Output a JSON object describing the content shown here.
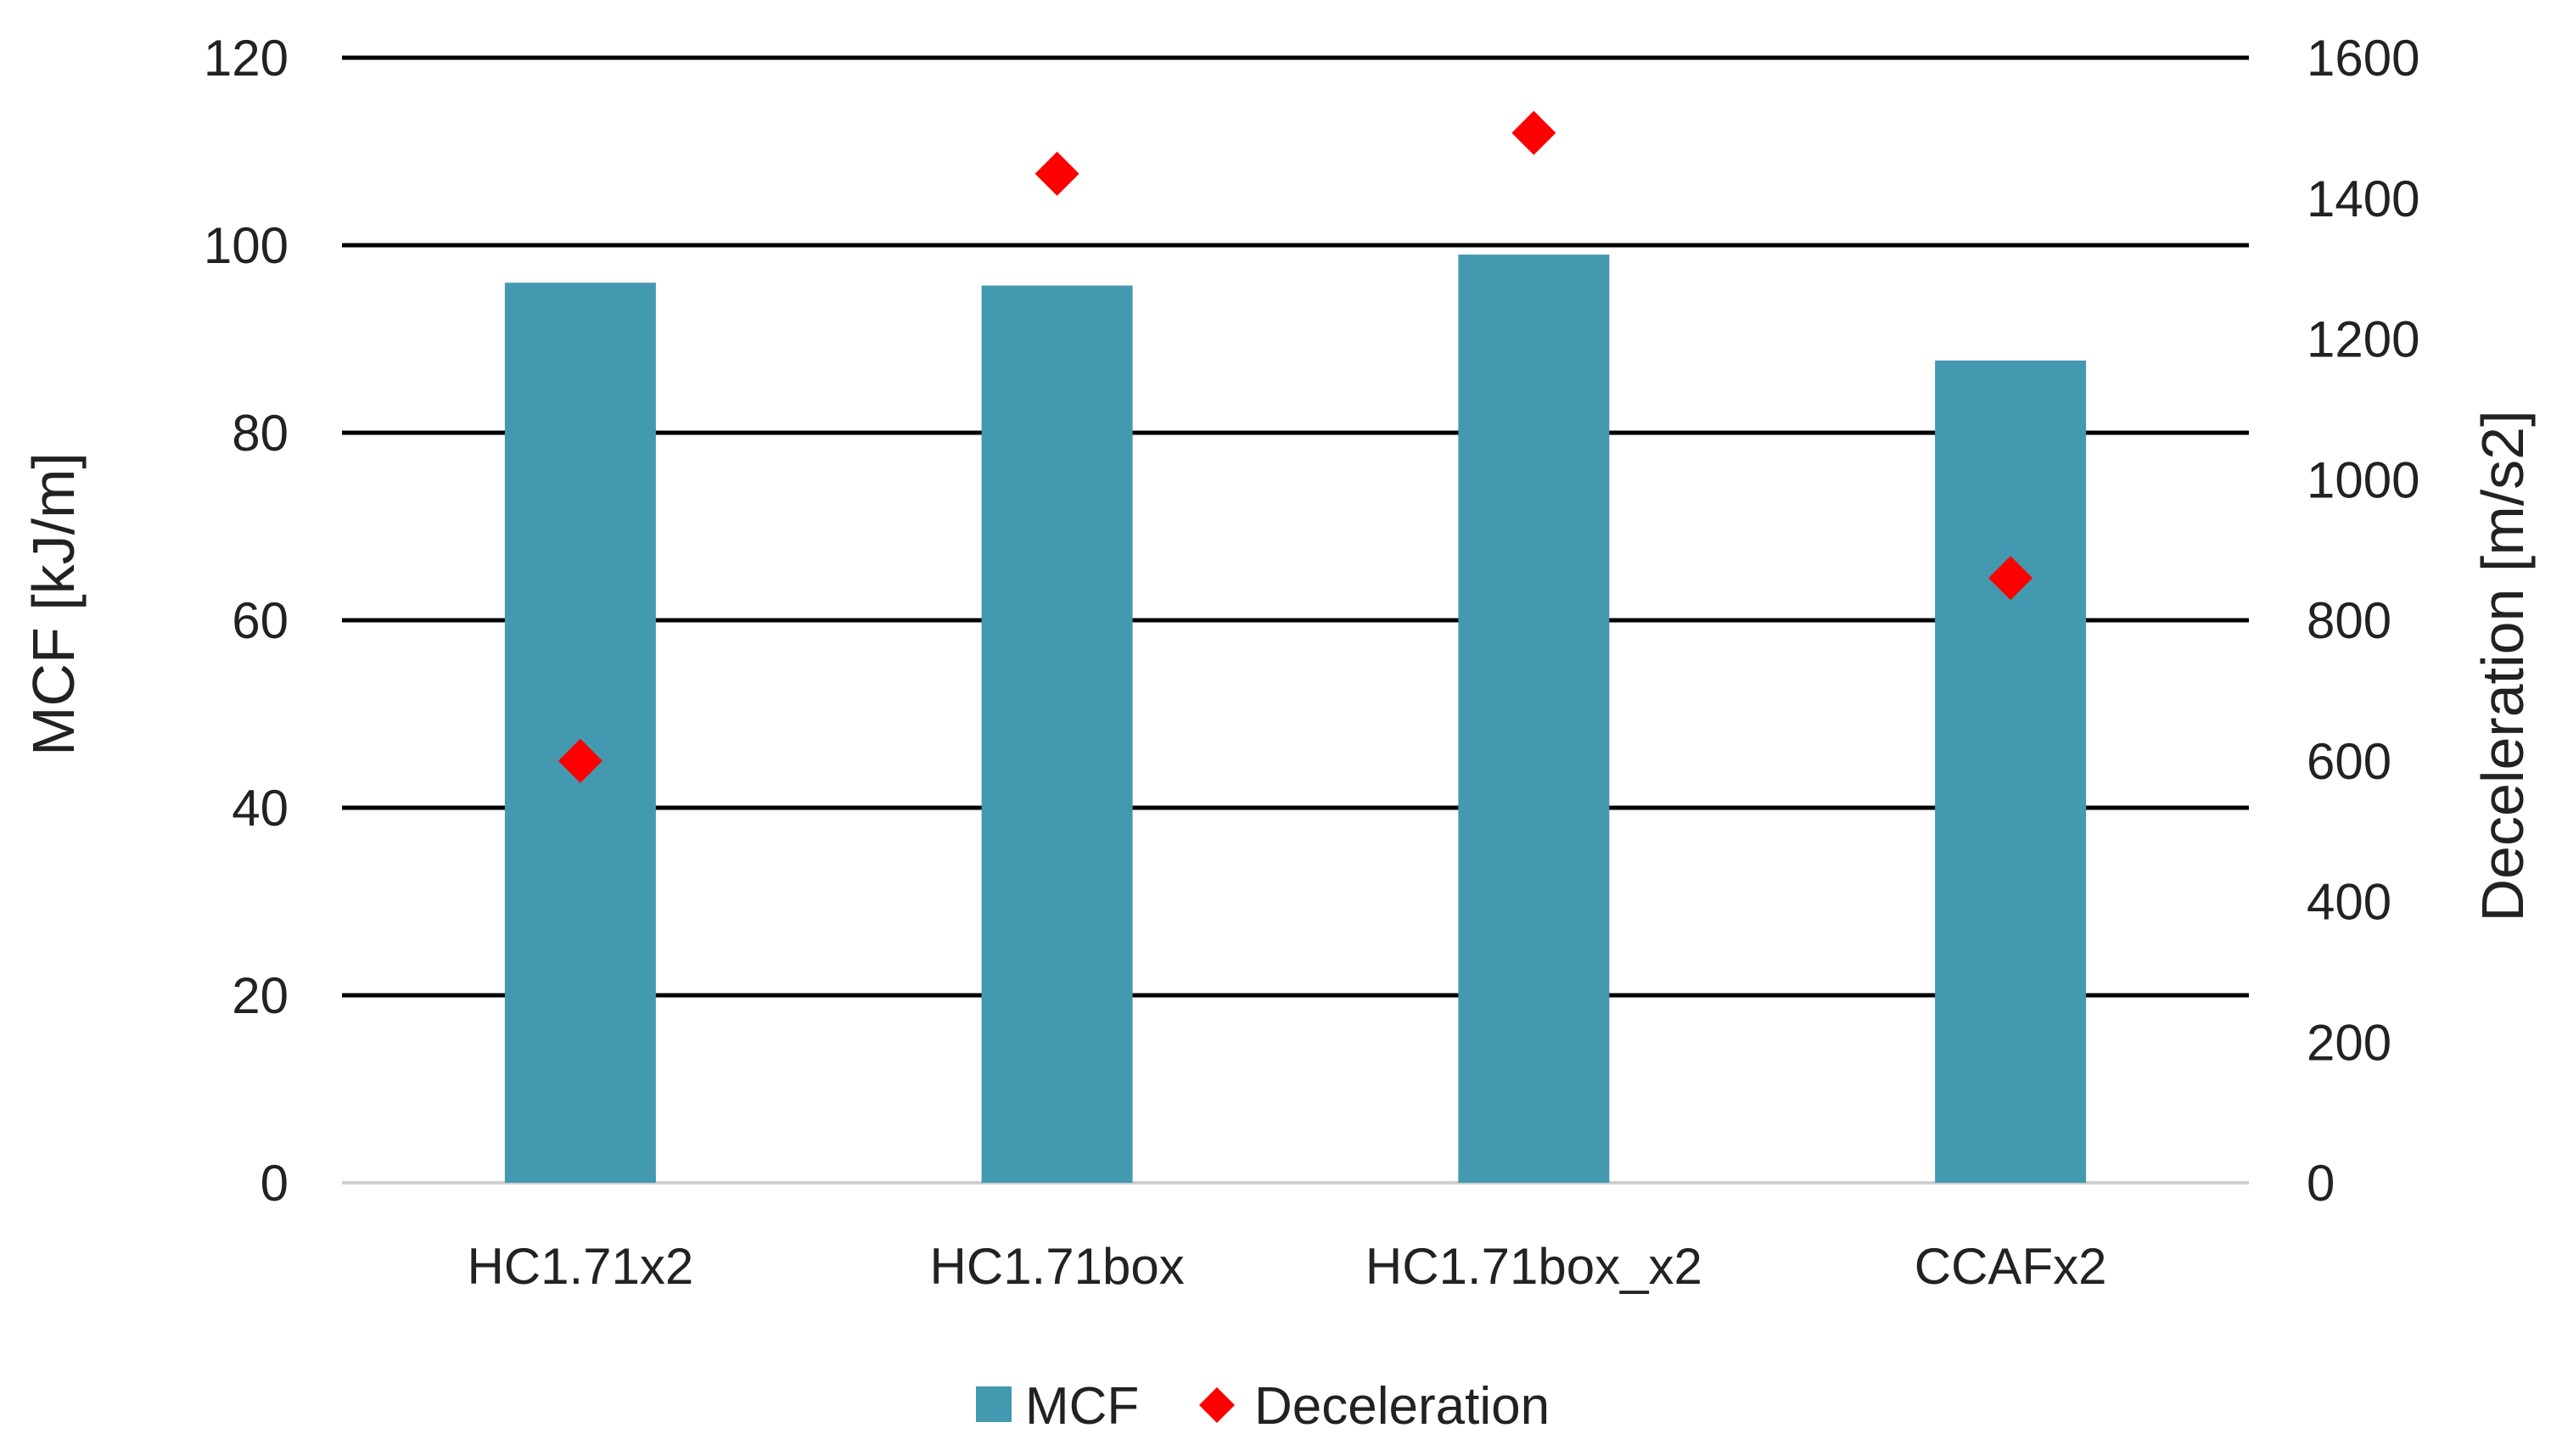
{
  "chart_data": {
    "type": "bar",
    "title": "",
    "categories": [
      "HC1.71x2",
      "HC1.71box",
      "HC1.71box_x2",
      "CCAFx2"
    ],
    "series": [
      {
        "name": "MCF",
        "kind": "bar",
        "axis": "left",
        "values": [
          96,
          95.7,
          99,
          87.7
        ]
      },
      {
        "name": "Deceleration",
        "kind": "marker",
        "axis": "right",
        "values": [
          600,
          1435,
          1493,
          860
        ]
      }
    ],
    "ylabel": "MCF [kJ/m]",
    "ylabel_right": "Deceleration [m/s2]",
    "ylim": [
      0,
      120
    ],
    "ylim_right": [
      0,
      1600
    ],
    "yticks": [
      0,
      20,
      40,
      60,
      80,
      100,
      120
    ],
    "yticks_right": [
      0,
      200,
      400,
      600,
      800,
      1000,
      1200,
      1400,
      1600
    ],
    "grid": true,
    "legend": "bottom-center",
    "colors": {
      "bar": "#4399b0",
      "marker": "#ff0000",
      "grid": "#000000",
      "baseline": "#d0d0d0"
    }
  }
}
